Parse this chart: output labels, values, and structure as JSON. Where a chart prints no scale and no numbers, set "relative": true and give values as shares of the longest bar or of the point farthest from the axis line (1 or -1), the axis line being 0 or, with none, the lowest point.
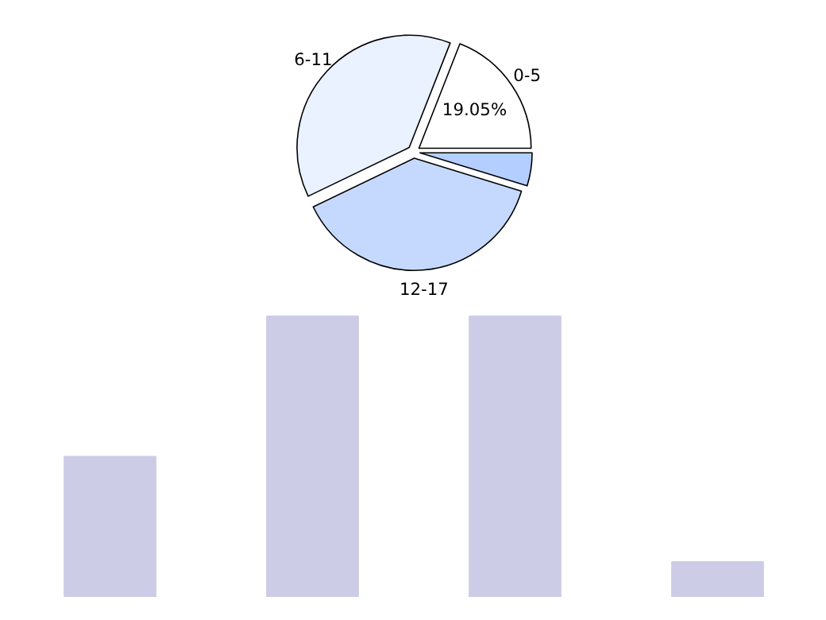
{
  "chart_data": [
    {
      "type": "pie",
      "categories": [
        "0-5",
        "6-11",
        "12-17",
        null
      ],
      "values": [
        19.05,
        38.1,
        38.1,
        4.76
      ],
      "colors": [
        "#ffffff",
        "#eaf1ff",
        "#c5d9ff",
        "#b3ceff"
      ],
      "value_labels": [
        "19.05%",
        null,
        null,
        null
      ]
    },
    {
      "type": "bar",
      "categories": [
        null,
        null,
        null,
        null
      ],
      "values": [
        0.5,
        1,
        1,
        0.125
      ],
      "color": "#ccccE6",
      "relative": true
    }
  ]
}
